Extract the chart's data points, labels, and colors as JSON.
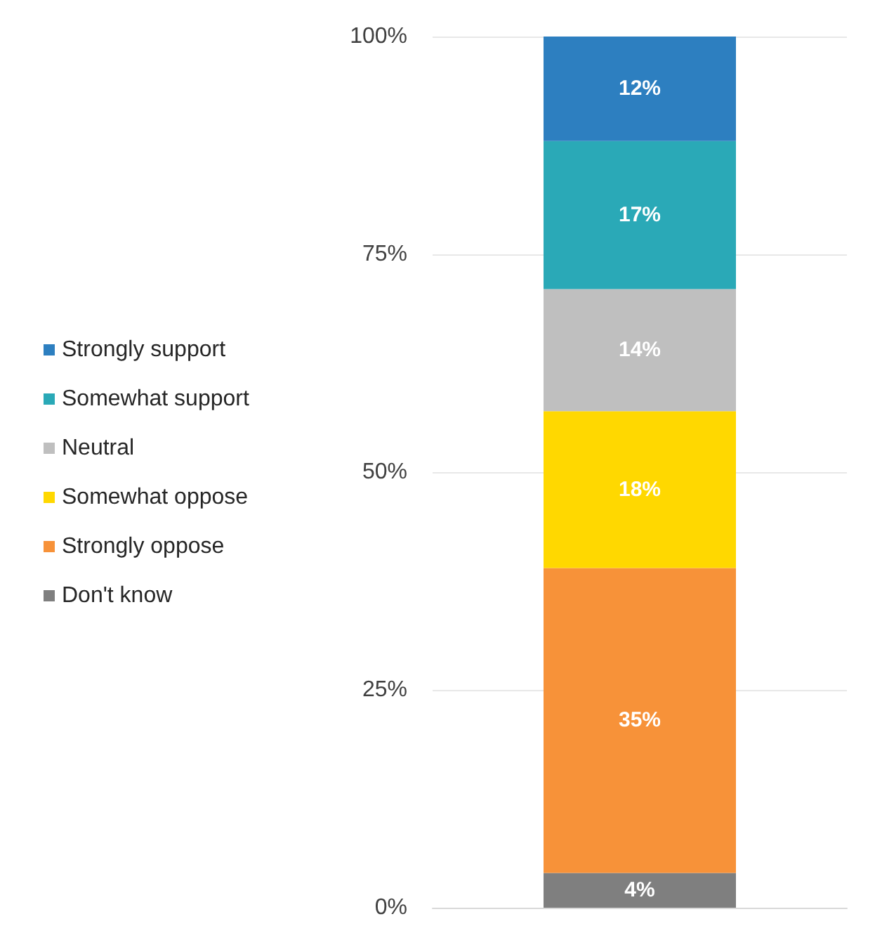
{
  "chart_data": {
    "type": "bar",
    "stacked": true,
    "categories": [
      null
    ],
    "series": [
      {
        "name": "Don't know",
        "color": "#7f7f7f",
        "values": [
          4
        ],
        "value_labels": [
          "4%"
        ]
      },
      {
        "name": "Strongly oppose",
        "color": "#f79239",
        "values": [
          35
        ],
        "value_labels": [
          "35%"
        ]
      },
      {
        "name": "Somewhat oppose",
        "color": "#ffd800",
        "values": [
          18
        ],
        "value_labels": [
          "18%"
        ]
      },
      {
        "name": "Neutral",
        "color": "#bfbfbf",
        "values": [
          14
        ],
        "value_labels": [
          "14%"
        ]
      },
      {
        "name": "Somewhat support",
        "color": "#2aa9b7",
        "values": [
          17
        ],
        "value_labels": [
          "17%"
        ]
      },
      {
        "name": "Strongly support",
        "color": "#2d7fc0",
        "values": [
          12
        ],
        "value_labels": [
          "12%"
        ]
      }
    ],
    "ylim": [
      0,
      100
    ],
    "yticks": [
      {
        "value": 0,
        "label": "0%"
      },
      {
        "value": 25,
        "label": "25%"
      },
      {
        "value": 50,
        "label": "50%"
      },
      {
        "value": 75,
        "label": "75%"
      },
      {
        "value": 100,
        "label": "100%"
      }
    ],
    "grid": "y",
    "legend": "left"
  }
}
